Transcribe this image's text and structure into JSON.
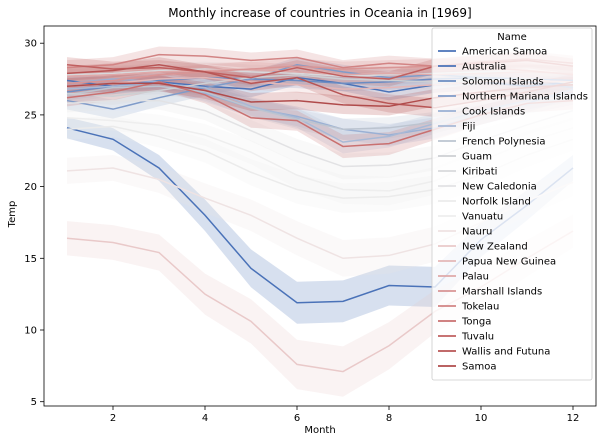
{
  "chart_data": {
    "type": "line",
    "title": "Monthly increase of countries in Oceania in [1969]",
    "xlabel": "Month",
    "ylabel": "Temp",
    "xlim": [
      0.5,
      12.5
    ],
    "ylim": [
      4.7,
      31.2
    ],
    "xticks": [
      2,
      4,
      6,
      8,
      10,
      12
    ],
    "yticks": [
      5,
      10,
      15,
      20,
      25,
      30
    ],
    "grid": false,
    "legend": {
      "title": "Name",
      "position": "top-right"
    },
    "x": [
      1,
      2,
      3,
      4,
      5,
      6,
      7,
      8,
      9,
      10,
      11,
      12
    ],
    "series": [
      {
        "name": "American Samoa",
        "color": "#4a72b8",
        "values": [
          27.4,
          27.0,
          27.3,
          27.0,
          26.8,
          27.6,
          27.2,
          26.6,
          27.1,
          27.3,
          27.0,
          27.3
        ]
      },
      {
        "name": "Australia",
        "color": "#4a72b8",
        "values": [
          24.1,
          23.3,
          21.3,
          18.0,
          14.3,
          11.9,
          12.0,
          13.1,
          13.0,
          16.3,
          18.7,
          21.3
        ]
      },
      {
        "name": "Solomon Islands",
        "color": "#6b8cc2",
        "values": [
          26.6,
          27.0,
          27.4,
          27.6,
          27.5,
          27.4,
          27.2,
          27.3,
          27.5,
          27.6,
          27.5,
          27.4
        ]
      },
      {
        "name": "Northern Mariana Islands",
        "color": "#7f9bc9",
        "values": [
          26.0,
          25.4,
          26.2,
          26.9,
          27.5,
          28.5,
          28.0,
          27.6,
          27.8,
          27.6,
          27.3,
          26.9
        ]
      },
      {
        "name": "Cook Islands",
        "color": "#9ab0d4",
        "values": [
          27.2,
          27.5,
          27.3,
          26.5,
          25.5,
          24.9,
          24.0,
          23.6,
          24.1,
          25.0,
          25.8,
          26.8
        ]
      },
      {
        "name": "Fiji",
        "color": "#a8b9d6",
        "values": [
          26.8,
          27.0,
          27.2,
          26.9,
          25.6,
          24.8,
          23.1,
          23.5,
          24.4,
          25.3,
          26.0,
          26.5
        ]
      },
      {
        "name": "French Polynesia",
        "color": "#bcc4d0",
        "values": [
          26.4,
          26.9,
          27.0,
          26.6,
          25.5,
          24.7,
          24.0,
          24.1,
          24.5,
          25.0,
          25.7,
          26.3
        ]
      },
      {
        "name": "Guam",
        "color": "#cdcfd3",
        "values": [
          26.5,
          26.3,
          26.7,
          27.2,
          27.6,
          27.8,
          27.5,
          27.4,
          27.3,
          27.4,
          27.5,
          27.2
        ]
      },
      {
        "name": "Kiribati",
        "color": "#d8d9dc",
        "values": [
          27.8,
          27.9,
          28.1,
          28.2,
          28.0,
          27.9,
          27.7,
          27.8,
          27.9,
          28.0,
          28.0,
          27.9
        ]
      },
      {
        "name": "New Caledonia",
        "color": "#e2e2e4",
        "values": [
          25.8,
          26.0,
          26.0,
          25.3,
          23.9,
          22.5,
          21.4,
          21.5,
          22.0,
          23.2,
          24.3,
          25.3
        ]
      },
      {
        "name": "Norfolk Island",
        "color": "#ebebeb",
        "values": [
          24.0,
          24.2,
          23.5,
          22.5,
          21.0,
          19.8,
          19.2,
          19.3,
          19.8,
          20.8,
          22.2,
          23.3
        ]
      },
      {
        "name": "Vanuatu",
        "color": "#eeeeee",
        "values": [
          24.8,
          24.6,
          24.3,
          23.6,
          22.4,
          20.8,
          19.8,
          19.7,
          20.4,
          21.8,
          23.1,
          24.1
        ]
      },
      {
        "name": "Nauru",
        "color": "#efe3e3",
        "values": [
          21.1,
          21.3,
          20.5,
          19.2,
          18.0,
          16.4,
          15.0,
          15.2,
          16.0,
          17.5,
          19.0,
          20.3
        ]
      },
      {
        "name": "New Zealand",
        "color": "#e9c9c9",
        "values": [
          16.4,
          16.1,
          15.4,
          12.5,
          10.6,
          7.6,
          7.1,
          8.9,
          11.3,
          13.0,
          15.0,
          16.9
        ]
      },
      {
        "name": "Papua New Guinea",
        "color": "#e4b7b7",
        "values": [
          27.0,
          27.2,
          27.5,
          27.6,
          27.3,
          27.1,
          26.8,
          26.9,
          27.1,
          27.3,
          27.4,
          27.3
        ]
      },
      {
        "name": "Palau",
        "color": "#dfa9a9",
        "values": [
          27.7,
          27.8,
          28.0,
          28.1,
          28.2,
          28.0,
          27.8,
          27.9,
          27.8,
          27.9,
          28.0,
          27.9
        ]
      },
      {
        "name": "Marshall Islands",
        "color": "#d99595",
        "values": [
          27.2,
          27.4,
          27.8,
          28.0,
          28.2,
          28.4,
          28.2,
          28.3,
          28.4,
          28.3,
          28.1,
          27.8
        ]
      },
      {
        "name": "Tokelau",
        "color": "#d28484",
        "values": [
          28.3,
          28.5,
          29.2,
          29.1,
          28.8,
          29.0,
          28.3,
          28.6,
          28.4,
          28.7,
          28.9,
          28.6
        ]
      },
      {
        "name": "Tonga",
        "color": "#c97070",
        "values": [
          26.2,
          26.6,
          27.3,
          26.4,
          24.8,
          24.6,
          22.8,
          23.0,
          24.0,
          25.0,
          25.8,
          26.0
        ]
      },
      {
        "name": "Tuvalu",
        "color": "#c06060",
        "values": [
          28.5,
          28.2,
          28.3,
          28.0,
          27.6,
          28.3,
          27.7,
          27.5,
          28.4,
          28.6,
          28.8,
          28.4
        ]
      },
      {
        "name": "Wallis and Futuna",
        "color": "#b85555",
        "values": [
          27.9,
          28.1,
          28.5,
          28.0,
          27.2,
          27.6,
          26.4,
          25.8,
          25.5,
          26.0,
          26.6,
          27.3
        ]
      },
      {
        "name": "Samoa",
        "color": "#b04b4b",
        "values": [
          27.0,
          27.2,
          27.2,
          26.7,
          25.9,
          26.0,
          25.7,
          25.6,
          26.2,
          26.6,
          26.9,
          27.1
        ]
      }
    ]
  }
}
